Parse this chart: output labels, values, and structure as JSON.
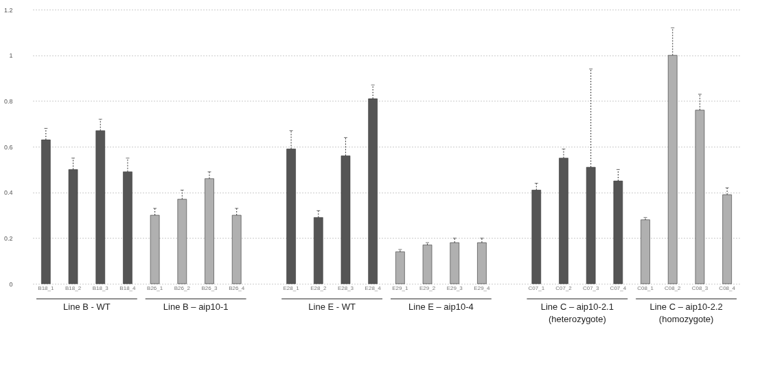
{
  "chart_data": {
    "type": "bar",
    "categories": [
      "B18_1",
      "B18_2",
      "B18_3",
      "B18_4",
      "B26_1",
      "B26_2",
      "B26_3",
      "B26_4",
      null,
      "E28_1",
      "E28_2",
      "E28_3",
      "E28_4",
      "E29_1",
      "E29_2",
      "E29_3",
      "E29_4",
      null,
      "C07_1",
      "C07_2",
      "C07_3",
      "C07_4",
      "C08_1",
      "C08_2",
      "C08_3",
      "C08_4"
    ],
    "values": [
      0.63,
      0.5,
      0.67,
      0.49,
      0.3,
      0.37,
      0.46,
      0.3,
      null,
      0.59,
      0.29,
      0.56,
      0.81,
      0.14,
      0.17,
      0.18,
      0.18,
      null,
      0.41,
      0.55,
      0.51,
      0.45,
      0.28,
      1.0,
      0.76,
      0.39
    ],
    "errors": [
      [
        0.63,
        0.68
      ],
      [
        0.5,
        0.55
      ],
      [
        0.67,
        0.72
      ],
      [
        0.49,
        0.55
      ],
      [
        0.3,
        0.33
      ],
      [
        0.37,
        0.41
      ],
      [
        0.46,
        0.49
      ],
      [
        0.3,
        0.33
      ],
      null,
      [
        0.59,
        0.67
      ],
      [
        0.29,
        0.32
      ],
      [
        0.56,
        0.64
      ],
      [
        0.81,
        0.87
      ],
      [
        0.14,
        0.15
      ],
      [
        0.17,
        0.18
      ],
      [
        0.18,
        0.2
      ],
      [
        0.18,
        0.2
      ],
      null,
      [
        0.41,
        0.44
      ],
      [
        0.55,
        0.59
      ],
      [
        0.51,
        0.94
      ],
      [
        0.45,
        0.5
      ],
      [
        0.28,
        0.29
      ],
      [
        1.0,
        1.12
      ],
      [
        0.76,
        0.83
      ],
      [
        0.39,
        0.42
      ]
    ],
    "colors": [
      "#555555",
      "#555555",
      "#555555",
      "#555555",
      "#b0b0b0",
      "#b0b0b0",
      "#b0b0b0",
      "#b0b0b0",
      null,
      "#555555",
      "#555555",
      "#555555",
      "#555555",
      "#b0b0b0",
      "#b0b0b0",
      "#b0b0b0",
      "#b0b0b0",
      null,
      "#555555",
      "#555555",
      "#555555",
      "#555555",
      "#b0b0b0",
      "#b0b0b0",
      "#b0b0b0",
      "#b0b0b0"
    ],
    "ylim": [
      0,
      1.2
    ],
    "yticks": [
      0,
      0.2,
      0.4,
      0.6,
      0.8,
      1,
      1.2
    ],
    "grid": "y",
    "legend": false,
    "annotations": [
      "Line B - WT",
      "Line B – aip10-1",
      "Line E - WT",
      "Line E – aip10-4",
      "Line C – aip10-2.1\n(heterozygote)",
      "Line C – aip10-2.2\n(homozygote)"
    ]
  }
}
